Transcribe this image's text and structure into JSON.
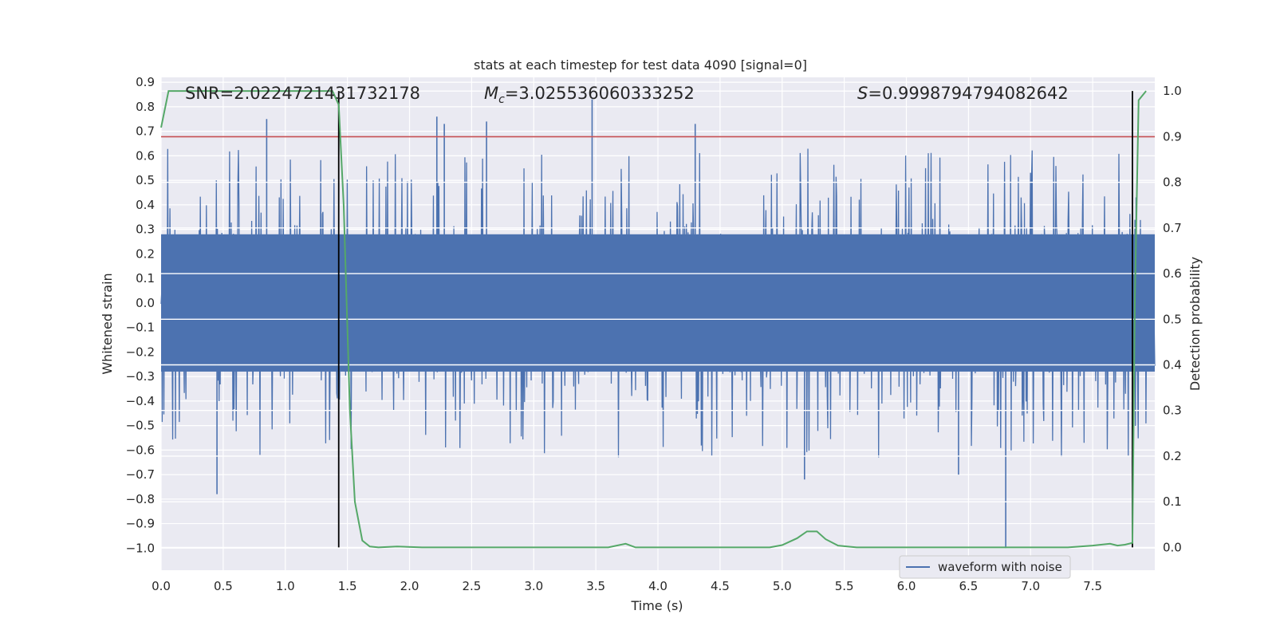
{
  "chart_data": {
    "type": "line",
    "title": "stats at each timestep for test data 4090 [signal=0]",
    "xlabel": "Time (s)",
    "ylabel": "Whitened strain",
    "y2label": "Detection probability",
    "xlim": [
      0.0,
      8.0
    ],
    "ylim": [
      -1.09,
      0.92
    ],
    "y2lim": [
      -0.05,
      1.03
    ],
    "xticks": [
      "0.0",
      "0.5",
      "1.0",
      "1.5",
      "2.0",
      "2.5",
      "3.0",
      "3.5",
      "4.0",
      "4.5",
      "5.0",
      "5.5",
      "6.0",
      "6.5",
      "7.0",
      "7.5"
    ],
    "yticks": [
      "0.9",
      "0.8",
      "0.7",
      "0.6",
      "0.5",
      "0.4",
      "0.3",
      "0.2",
      "0.1",
      "0.0",
      "−0.1",
      "−0.2",
      "−0.3",
      "−0.4",
      "−0.5",
      "−0.6",
      "−0.7",
      "−0.8",
      "−0.9",
      "−1.0"
    ],
    "y2ticks": [
      "1.0",
      "0.9",
      "0.8",
      "0.7",
      "0.6",
      "0.5",
      "0.4",
      "0.3",
      "0.2",
      "0.1",
      "0.0"
    ],
    "grid": true,
    "legend": {
      "position": "lower-right",
      "entries": [
        "waveform with noise"
      ]
    },
    "annotations": {
      "snr": "SNR=2.0224721431732178",
      "mc_symbol": "M",
      "mc_sub": "c",
      "mc_value": "=3.025536060333252",
      "s_symbol": "S",
      "s_value": "=0.9998794794082642"
    },
    "threshold": {
      "value": 0.9,
      "axis": "right",
      "color": "#c44e52"
    },
    "vlines": [
      1.43,
      7.82
    ],
    "series": [
      {
        "name": "waveform with noise",
        "color": "#4c72b0",
        "axis": "left",
        "duration": 8.0,
        "envelope": 0.28,
        "tail_max": 0.63,
        "seed": 4090,
        "spikes": [
          {
            "x": 0.45,
            "y": -0.78
          },
          {
            "x": 0.85,
            "y": 0.75
          },
          {
            "x": 2.22,
            "y": 0.76
          },
          {
            "x": 2.28,
            "y": 0.73
          },
          {
            "x": 2.62,
            "y": 0.74
          },
          {
            "x": 3.47,
            "y": 0.83
          },
          {
            "x": 4.3,
            "y": 0.73
          },
          {
            "x": 5.18,
            "y": -0.72
          },
          {
            "x": 6.8,
            "y": -1.0
          },
          {
            "x": 6.42,
            "y": -0.7
          }
        ]
      },
      {
        "name": "detection probability",
        "color": "#55a868",
        "axis": "right",
        "x": [
          0.0,
          0.06,
          0.2,
          0.5,
          1.0,
          1.38,
          1.43,
          1.47,
          1.52,
          1.56,
          1.62,
          1.68,
          1.75,
          1.9,
          2.1,
          3.0,
          3.6,
          3.74,
          3.82,
          4.0,
          4.5,
          4.9,
          5.0,
          5.12,
          5.2,
          5.28,
          5.35,
          5.45,
          5.6,
          6.0,
          6.5,
          7.0,
          7.3,
          7.5,
          7.64,
          7.7,
          7.76,
          7.82,
          7.84,
          7.87,
          7.93
        ],
        "values": [
          0.92,
          1.0,
          1.0,
          1.0,
          1.0,
          1.0,
          0.97,
          0.75,
          0.3,
          0.1,
          0.015,
          0.002,
          0.0,
          0.002,
          0.0,
          0.0,
          0.0,
          0.008,
          0.0,
          0.0,
          0.0,
          0.0,
          0.005,
          0.02,
          0.035,
          0.035,
          0.018,
          0.004,
          0.0,
          0.0,
          0.0,
          0.0,
          0.0,
          0.004,
          0.008,
          0.004,
          0.006,
          0.01,
          0.55,
          0.98,
          1.0
        ]
      }
    ]
  }
}
